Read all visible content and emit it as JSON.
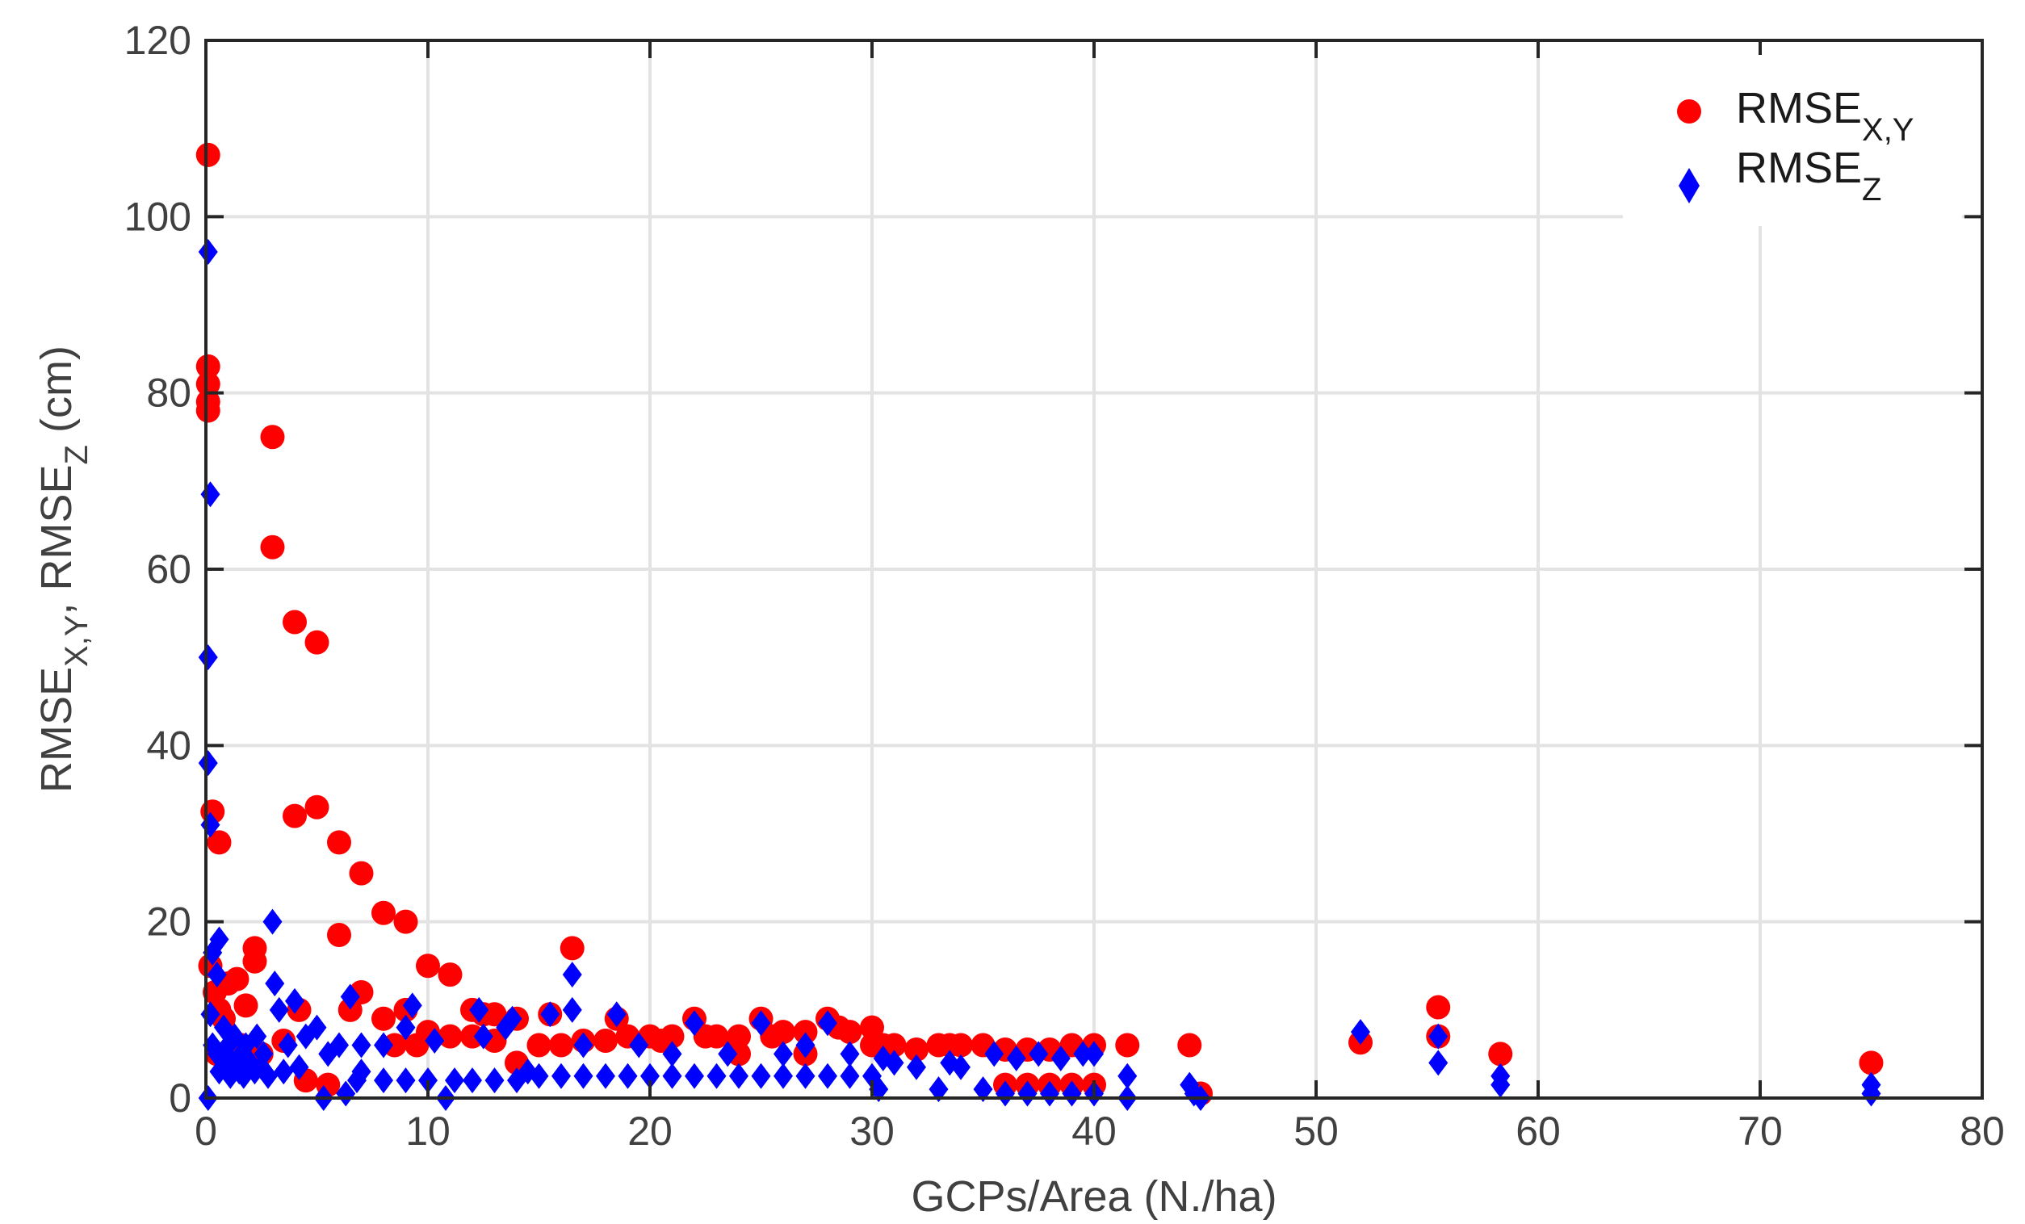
{
  "chart_data": {
    "type": "scatter",
    "xlabel": "GCPs/Area (N./ha)",
    "ylabel": {
      "parts": [
        {
          "t": "RMSE"
        },
        {
          "t": "X,Y",
          "sub": true
        },
        {
          "t": ", RMSE"
        },
        {
          "t": "Z",
          "sub": true
        },
        {
          "t": " (cm)"
        }
      ]
    },
    "xlim": [
      0,
      80
    ],
    "ylim": [
      0,
      120
    ],
    "xticks": [
      0,
      10,
      20,
      30,
      40,
      50,
      60,
      70,
      80
    ],
    "yticks": [
      0,
      20,
      40,
      60,
      80,
      100,
      120
    ],
    "grid": true,
    "legend_position": "top-right",
    "series": [
      {
        "name": {
          "main": "RMSE",
          "sub": "X,Y"
        },
        "marker": "circle",
        "color": "#ff0000",
        "points": [
          [
            0.1,
            107
          ],
          [
            0.1,
            83
          ],
          [
            0.1,
            81
          ],
          [
            0.1,
            79
          ],
          [
            0.1,
            78
          ],
          [
            0.3,
            32.5
          ],
          [
            0.6,
            29
          ],
          [
            0.2,
            15
          ],
          [
            0.4,
            12
          ],
          [
            0.6,
            10
          ],
          [
            1.0,
            13
          ],
          [
            1.4,
            13.5
          ],
          [
            1.8,
            10.5
          ],
          [
            2.2,
            17
          ],
          [
            2.2,
            15.5
          ],
          [
            0.8,
            9
          ],
          [
            3.0,
            75
          ],
          [
            3.0,
            62.5
          ],
          [
            4.0,
            54
          ],
          [
            5.0,
            51.7
          ],
          [
            4.0,
            32
          ],
          [
            5.0,
            33
          ],
          [
            6.0,
            29
          ],
          [
            6.0,
            18.5
          ],
          [
            7.0,
            25.5
          ],
          [
            7.0,
            12
          ],
          [
            6.5,
            10
          ],
          [
            8.0,
            21
          ],
          [
            8.0,
            9
          ],
          [
            9.0,
            20
          ],
          [
            9.0,
            10
          ],
          [
            10.0,
            15
          ],
          [
            10.0,
            7.5
          ],
          [
            11.0,
            14
          ],
          [
            11.0,
            7
          ],
          [
            12.0,
            10
          ],
          [
            12.0,
            7
          ],
          [
            12.5,
            9.5
          ],
          [
            13.0,
            9.5
          ],
          [
            13.0,
            6.5
          ],
          [
            14.0,
            9
          ],
          [
            14.0,
            4
          ],
          [
            15.0,
            6
          ],
          [
            15.5,
            9.5
          ],
          [
            16.0,
            6
          ],
          [
            16.5,
            17
          ],
          [
            17.0,
            6.5
          ],
          [
            18.0,
            6.5
          ],
          [
            18.5,
            9
          ],
          [
            19.0,
            7
          ],
          [
            20.0,
            7
          ],
          [
            20.5,
            6.5
          ],
          [
            21.0,
            7
          ],
          [
            22.0,
            9
          ],
          [
            22.5,
            7
          ],
          [
            23.0,
            7
          ],
          [
            24.0,
            7
          ],
          [
            24.0,
            5
          ],
          [
            25.0,
            9
          ],
          [
            25.5,
            7
          ],
          [
            26.0,
            7.5
          ],
          [
            27.0,
            7.5
          ],
          [
            27.0,
            5
          ],
          [
            28.0,
            9
          ],
          [
            28.5,
            8
          ],
          [
            29.0,
            7.5
          ],
          [
            30.0,
            8
          ],
          [
            30.0,
            6
          ],
          [
            30.5,
            6
          ],
          [
            31.0,
            6
          ],
          [
            32.0,
            5.5
          ],
          [
            33.0,
            6
          ],
          [
            33.5,
            6
          ],
          [
            34.0,
            6
          ],
          [
            35.0,
            6
          ],
          [
            36.0,
            5.5
          ],
          [
            36.0,
            1.5
          ],
          [
            37.0,
            5.5
          ],
          [
            37.0,
            1.5
          ],
          [
            38.0,
            5.5
          ],
          [
            38.0,
            1.5
          ],
          [
            39.0,
            6
          ],
          [
            39.0,
            1.5
          ],
          [
            40.0,
            6
          ],
          [
            40.0,
            1.5
          ],
          [
            41.5,
            6
          ],
          [
            44.3,
            6
          ],
          [
            44.8,
            0.5
          ],
          [
            52.0,
            6.3
          ],
          [
            55.5,
            10.3
          ],
          [
            55.5,
            7
          ],
          [
            58.3,
            5
          ],
          [
            75.0,
            4
          ],
          [
            0.5,
            5
          ],
          [
            1.2,
            4
          ],
          [
            1.6,
            6
          ],
          [
            2.5,
            5
          ],
          [
            3.5,
            6.5
          ],
          [
            4.2,
            10
          ],
          [
            4.5,
            2
          ],
          [
            5.5,
            1.5
          ],
          [
            8.5,
            6
          ],
          [
            9.5,
            6
          ]
        ]
      },
      {
        "name": {
          "main": "RMSE",
          "sub": "Z"
        },
        "marker": "diamond",
        "color": "#0000ff",
        "points": [
          [
            0.1,
            96
          ],
          [
            0.2,
            68.5
          ],
          [
            0.1,
            50
          ],
          [
            0.1,
            38
          ],
          [
            0.2,
            31
          ],
          [
            0.3,
            16.5
          ],
          [
            0.5,
            14
          ],
          [
            0.6,
            18
          ],
          [
            0.2,
            9.5
          ],
          [
            0.3,
            6
          ],
          [
            0.5,
            5
          ],
          [
            0.6,
            3
          ],
          [
            0.8,
            8
          ],
          [
            0.9,
            3.5
          ],
          [
            1.0,
            6
          ],
          [
            1.1,
            2.5
          ],
          [
            1.2,
            4
          ],
          [
            1.3,
            7
          ],
          [
            1.5,
            3
          ],
          [
            1.6,
            5
          ],
          [
            1.7,
            2.5
          ],
          [
            1.8,
            6
          ],
          [
            2.0,
            4
          ],
          [
            2.2,
            3
          ],
          [
            2.3,
            7
          ],
          [
            2.5,
            3.5
          ],
          [
            2.6,
            5
          ],
          [
            2.8,
            2.5
          ],
          [
            3.0,
            20
          ],
          [
            3.1,
            13
          ],
          [
            3.3,
            10
          ],
          [
            3.5,
            3
          ],
          [
            3.7,
            6
          ],
          [
            4.0,
            11
          ],
          [
            4.2,
            3.5
          ],
          [
            4.5,
            7
          ],
          [
            5.0,
            8
          ],
          [
            5.3,
            0
          ],
          [
            5.5,
            5
          ],
          [
            6.0,
            6
          ],
          [
            6.3,
            0.5
          ],
          [
            6.5,
            11.5
          ],
          [
            6.8,
            2
          ],
          [
            7.0,
            6
          ],
          [
            7.0,
            3
          ],
          [
            8.0,
            6
          ],
          [
            8.0,
            2
          ],
          [
            9.0,
            8
          ],
          [
            9.0,
            2
          ],
          [
            9.3,
            10.5
          ],
          [
            10.0,
            2
          ],
          [
            10.3,
            6.5
          ],
          [
            10.8,
            0
          ],
          [
            11.2,
            2
          ],
          [
            12.0,
            2
          ],
          [
            12.3,
            10
          ],
          [
            12.5,
            7
          ],
          [
            13.0,
            2
          ],
          [
            13.5,
            8
          ],
          [
            13.8,
            9
          ],
          [
            14.0,
            2
          ],
          [
            14.5,
            3
          ],
          [
            15.0,
            2.5
          ],
          [
            15.5,
            9.5
          ],
          [
            16.0,
            2.5
          ],
          [
            16.5,
            14
          ],
          [
            16.5,
            10
          ],
          [
            17.0,
            2.5
          ],
          [
            17.0,
            6
          ],
          [
            18.0,
            2.5
          ],
          [
            18.5,
            9.5
          ],
          [
            19.0,
            2.5
          ],
          [
            19.5,
            6
          ],
          [
            20.0,
            2.5
          ],
          [
            21.0,
            2.5
          ],
          [
            21.0,
            5
          ],
          [
            22.0,
            2.5
          ],
          [
            22.0,
            8.5
          ],
          [
            23.0,
            2.5
          ],
          [
            23.5,
            5
          ],
          [
            24.0,
            2.5
          ],
          [
            25.0,
            2.5
          ],
          [
            25.0,
            8.5
          ],
          [
            26.0,
            2.5
          ],
          [
            26.0,
            5
          ],
          [
            27.0,
            2.5
          ],
          [
            27.0,
            6
          ],
          [
            28.0,
            2.5
          ],
          [
            28.0,
            8.5
          ],
          [
            29.0,
            2.5
          ],
          [
            29.0,
            5
          ],
          [
            30.0,
            2.5
          ],
          [
            30.3,
            1
          ],
          [
            30.5,
            4.5
          ],
          [
            31.0,
            4
          ],
          [
            32.0,
            3.5
          ],
          [
            33.0,
            1
          ],
          [
            33.5,
            4
          ],
          [
            34.0,
            3.5
          ],
          [
            35.0,
            1
          ],
          [
            35.5,
            5
          ],
          [
            36.0,
            0.5
          ],
          [
            36.5,
            4.5
          ],
          [
            37.0,
            0.5
          ],
          [
            37.5,
            5
          ],
          [
            38.0,
            0.5
          ],
          [
            38.5,
            4.5
          ],
          [
            39.0,
            0.5
          ],
          [
            39.5,
            5
          ],
          [
            40.0,
            0.5
          ],
          [
            40.0,
            5
          ],
          [
            41.5,
            2.5
          ],
          [
            41.5,
            0
          ],
          [
            44.3,
            1.5
          ],
          [
            44.5,
            0.5
          ],
          [
            44.8,
            0
          ],
          [
            52.0,
            7.5
          ],
          [
            55.5,
            7
          ],
          [
            55.5,
            4
          ],
          [
            58.3,
            2.5
          ],
          [
            58.3,
            1.5
          ],
          [
            75.0,
            1.5
          ],
          [
            75.0,
            0.5
          ],
          [
            0.1,
            0
          ]
        ]
      }
    ]
  }
}
